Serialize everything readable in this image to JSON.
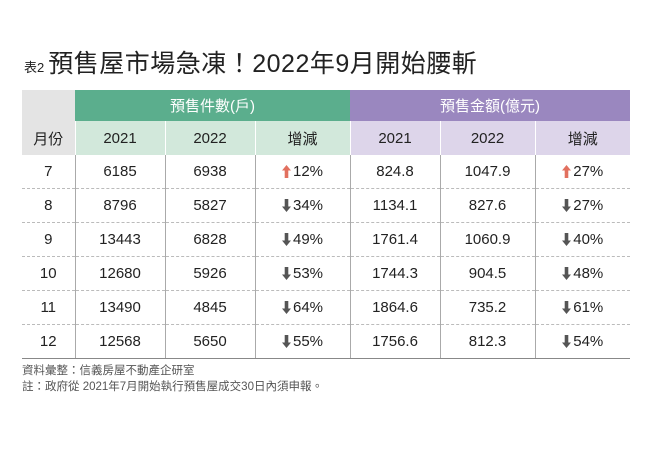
{
  "title": {
    "prefix": "表2",
    "text": "預售屋市場急凍！2022年9月開始腰斬"
  },
  "table": {
    "group_headers": [
      "預售件數(戶)",
      "預售金額(億元)"
    ],
    "columns": [
      "月份",
      "2021",
      "2022",
      "增減",
      "2021",
      "2022",
      "增減"
    ],
    "rows": [
      [
        "7",
        "6185",
        "6938",
        {
          "dir": "up",
          "text": "12%"
        },
        "824.8",
        "1047.9",
        {
          "dir": "up",
          "text": "27%"
        }
      ],
      [
        "8",
        "8796",
        "5827",
        {
          "dir": "down",
          "text": "34%"
        },
        "1134.1",
        "827.6",
        {
          "dir": "down",
          "text": "27%"
        }
      ],
      [
        "9",
        "13443",
        "6828",
        {
          "dir": "down",
          "text": "49%"
        },
        "1761.4",
        "1060.9",
        {
          "dir": "down",
          "text": "40%"
        }
      ],
      [
        "10",
        "12680",
        "5926",
        {
          "dir": "down",
          "text": "53%"
        },
        "1744.3",
        "904.5",
        {
          "dir": "down",
          "text": "48%"
        }
      ],
      [
        "11",
        "13490",
        "4845",
        {
          "dir": "down",
          "text": "64%"
        },
        "1864.6",
        "735.2",
        {
          "dir": "down",
          "text": "61%"
        }
      ],
      [
        "12",
        "12568",
        "5650",
        {
          "dir": "down",
          "text": "55%"
        },
        "1756.6",
        "812.3",
        {
          "dir": "down",
          "text": "54%"
        }
      ]
    ]
  },
  "notes": [
    "資料彙整：信義房屋不動產企研室",
    "註：政府從 2021年7月開始執行預售屋成交30日內須申報。"
  ]
}
